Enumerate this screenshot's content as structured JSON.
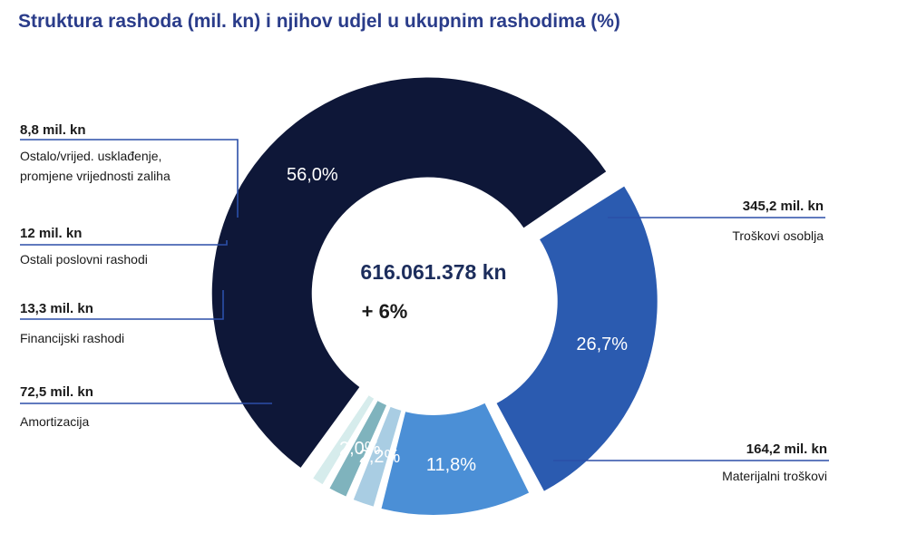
{
  "title": "Struktura rashoda (mil. kn) i njihov udjel u ukupnim rashodima (%)",
  "center": {
    "total": "616.061.378 kn",
    "change": "+ 6%"
  },
  "chart_data": {
    "type": "pie",
    "title": "Struktura rashoda (mil. kn) i njihov udjel u ukupnim rashodima (%)",
    "slices": [
      {
        "name": "Troškovi osoblja",
        "value": 345.2,
        "value_label": "345,2 mil. kn",
        "percent": 56.0,
        "percent_label": "56,0%",
        "color": "#0e1738"
      },
      {
        "name": "Materijalni troškovi",
        "value": 164.2,
        "value_label": "164,2 mil. kn",
        "percent": 26.7,
        "percent_label": "26,7%",
        "color": "#2b5bb0"
      },
      {
        "name": "Amortizacija",
        "value": 72.5,
        "value_label": "72,5 mil. kn",
        "percent": 11.8,
        "percent_label": "11,8%",
        "color": "#4b8fd6"
      },
      {
        "name": "Financijski rashodi",
        "value": 13.3,
        "value_label": "13,3 mil. kn",
        "percent": 2.2,
        "percent_label": "2,2%",
        "color": "#a9cde3"
      },
      {
        "name": "Ostali poslovni rashodi",
        "value": 12,
        "value_label": "12 mil. kn",
        "percent": 2.0,
        "percent_label": "2,0%",
        "color": "#7fb3bd"
      },
      {
        "name": "Ostalo/vrijed. usklađenje, promjene vrijednosti zaliha",
        "value": 8.8,
        "value_label": "8,8 mil. kn",
        "percent": 1.4,
        "percent_label": "",
        "color": "#d6ecec"
      }
    ]
  }
}
